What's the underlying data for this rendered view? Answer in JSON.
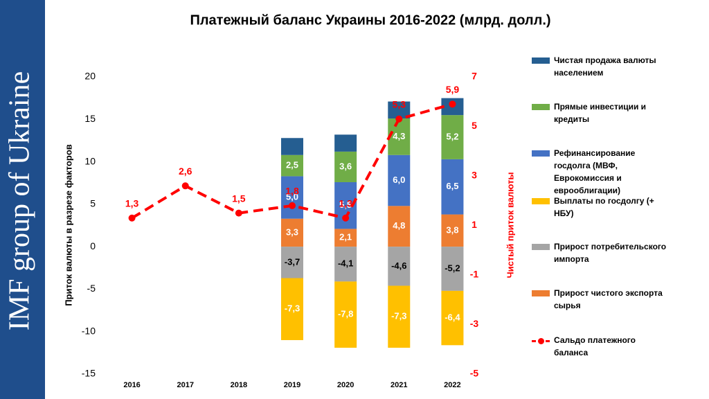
{
  "sidebar": {
    "text": "IMF group of Ukraine"
  },
  "chart_data": {
    "type": "bar",
    "title": "Платежный баланс Украины 2016-2022 (млрд. долл.)",
    "y_label": "Приток валюты в разрезе факторов",
    "y2_label": "Чистый приток валюты",
    "categories": [
      "2016",
      "2017",
      "2018",
      "2019",
      "2020",
      "2021",
      "2022"
    ],
    "ylim": [
      -15,
      20
    ],
    "yticks": [
      -15,
      -10,
      -5,
      0,
      5,
      10,
      15,
      20
    ],
    "y2lim": [
      -5,
      7
    ],
    "y2ticks": [
      -5,
      -3,
      -1,
      1,
      3,
      5,
      7
    ],
    "grid": false,
    "series": [
      {
        "name": "Прирост чистого экспорта сырья",
        "color": "#ED7D31",
        "label_color": "#ffffff",
        "values": [
          null,
          null,
          null,
          3.3,
          2.1,
          4.8,
          3.8
        ],
        "value_labels": [
          null,
          null,
          null,
          "3,3",
          "2,1",
          "4,8",
          "3,8"
        ]
      },
      {
        "name": "Прирост потребительского импорта",
        "color": "#A5A5A5",
        "label_color": "#000000",
        "values": [
          null,
          null,
          null,
          -3.7,
          -4.1,
          -4.6,
          -5.2
        ],
        "value_labels": [
          null,
          null,
          null,
          "-3,7",
          "-4,1",
          "-4,6",
          "-5,2"
        ]
      },
      {
        "name": "Выплаты по госдолгу (+ НБУ)",
        "color": "#FFC000",
        "label_color": "#ffffff",
        "values": [
          null,
          null,
          null,
          -7.3,
          -7.8,
          -7.3,
          -6.4
        ],
        "value_labels": [
          null,
          null,
          null,
          "-7,3",
          "-7,8",
          "-7,3",
          "-6,4"
        ]
      },
      {
        "name": "Рефинансирование госдолга (МВФ, Еврокомиссия и еврооблигации)",
        "color": "#4472C4",
        "label_color": "#ffffff",
        "values": [
          null,
          null,
          null,
          5.0,
          5.5,
          6.0,
          6.5
        ],
        "value_labels": [
          null,
          null,
          null,
          "5,0",
          "5,5",
          "6,0",
          "6,5"
        ]
      },
      {
        "name": "Прямые инвестиции и кредиты",
        "color": "#70AD47",
        "label_color": "#ffffff",
        "values": [
          null,
          null,
          null,
          2.5,
          3.6,
          4.3,
          5.2
        ],
        "value_labels": [
          null,
          null,
          null,
          "2,5",
          "3,6",
          "4,3",
          "5,2"
        ]
      },
      {
        "name": "Чистая продажа валюты населением",
        "color": "#255E91",
        "values": [
          null,
          null,
          null,
          2.0,
          2.0,
          2.0,
          2.0
        ]
      },
      {
        "name": "Сальдо платежного баланса",
        "type": "line",
        "axis": "y2",
        "color": "#FF0000",
        "label_color": "#FF0000",
        "values": [
          1.3,
          2.6,
          1.5,
          1.8,
          1.3,
          5.3,
          5.9
        ],
        "value_labels": [
          "1,3",
          "2,6",
          "1,5",
          "1,8",
          "1,3",
          "5,3",
          "5,9"
        ]
      }
    ]
  }
}
